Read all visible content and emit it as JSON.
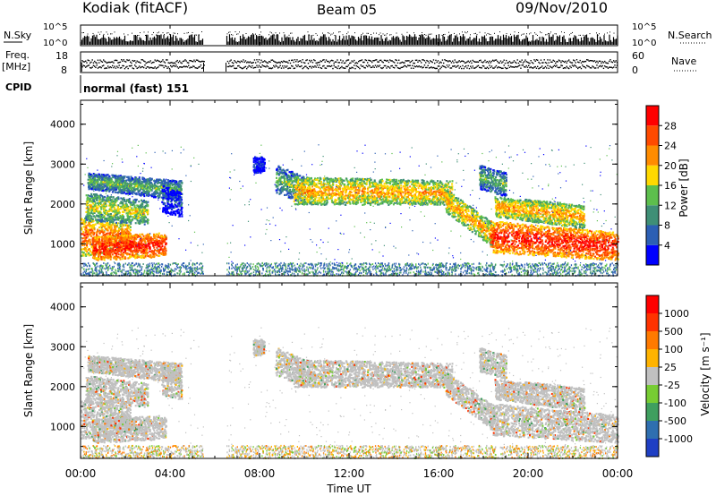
{
  "header": {
    "station": "Kodiak (fitACF)",
    "beam": "Beam 05",
    "date": "09/Nov/2010"
  },
  "strip": {
    "nsky_label": "N.Sky",
    "nsearch_label": "N.Search",
    "nsky_ticks": [
      "10^5",
      "10^0"
    ],
    "nsearch_ticks": [
      "10^5",
      "10^0"
    ],
    "freq_label_1": "Freq.",
    "freq_label_2": "[MHz]",
    "freq_ticks": [
      "18",
      "8"
    ],
    "nave_label": "Nave",
    "nave_ticks": [
      "60",
      "0"
    ],
    "cpid_label": "CPID",
    "cpid_text": "normal (fast) 151"
  },
  "chart_data": [
    {
      "type": "heatmap",
      "title": "",
      "xlabel": "",
      "ylabel": "Slant Range [km]",
      "yticks": [
        "1000",
        "2000",
        "3000",
        "4000"
      ],
      "ylim": [
        200,
        4600
      ],
      "xlim": [
        0,
        24
      ],
      "colorbar": {
        "label": "Power [dB]",
        "ticks": [
          "4",
          "8",
          "12",
          "16",
          "20",
          "24",
          "28"
        ],
        "colors": [
          "#0000ff",
          "#2c5fb4",
          "#3f8f76",
          "#5dbf4d",
          "#ffd900",
          "#ff8c00",
          "#ff4a00",
          "#ff0000"
        ]
      },
      "data_gaps_hours": [
        [
          5.5,
          6.5
        ]
      ]
    },
    {
      "type": "heatmap",
      "title": "",
      "xlabel": "Time UT",
      "ylabel": "Slant Range [km]",
      "yticks": [
        "1000",
        "2000",
        "3000",
        "4000"
      ],
      "ylim": [
        200,
        4600
      ],
      "xlim": [
        0,
        24
      ],
      "xticks": [
        "00:00",
        "04:00",
        "08:00",
        "12:00",
        "16:00",
        "20:00",
        "00:00"
      ],
      "colorbar": {
        "label": "Velocity [m s⁻¹]",
        "ticks": [
          "1000",
          "500",
          "100",
          "25",
          "-25",
          "-100",
          "-500",
          "-1000"
        ],
        "colors": [
          "#1f3fc4",
          "#2f6fb0",
          "#3f9f5f",
          "#77cc33",
          "#c0c0c0",
          "#ffb300",
          "#ff7a00",
          "#ff3300",
          "#ff0000"
        ]
      },
      "data_gaps_hours": [
        [
          5.5,
          6.5
        ]
      ]
    }
  ]
}
